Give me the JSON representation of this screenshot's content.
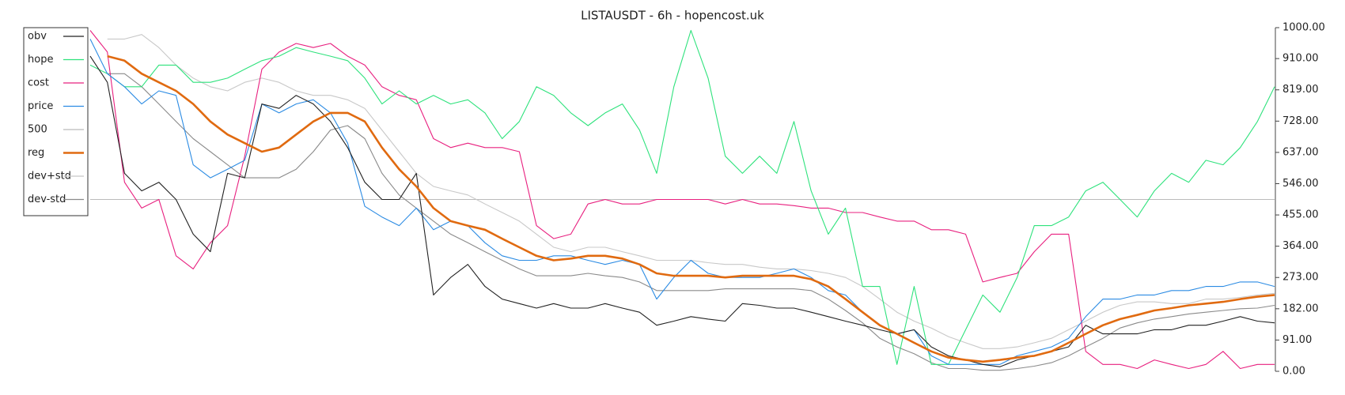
{
  "chart_data": {
    "type": "line",
    "title": "LISTAUSDT - 6h - hopencost.uk",
    "ylim": [
      0,
      1000
    ],
    "yticks": [
      {
        "value": 0,
        "label": "0.00"
      },
      {
        "value": 91,
        "label": "91.00"
      },
      {
        "value": 182,
        "label": "182.00"
      },
      {
        "value": 273,
        "label": "273.00"
      },
      {
        "value": 364,
        "label": "364.00"
      },
      {
        "value": 455,
        "label": "455.00"
      },
      {
        "value": 546,
        "label": "546.00"
      },
      {
        "value": 637,
        "label": "637.00"
      },
      {
        "value": 728,
        "label": "728.00"
      },
      {
        "value": 819,
        "label": "819.00"
      },
      {
        "value": 910,
        "label": "910.00"
      },
      {
        "value": 1000,
        "label": "1000.00"
      }
    ],
    "legend": "upper left",
    "series": [
      {
        "name": "obv",
        "color": "#222222",
        "values": [
          917,
          841,
          576,
          525,
          550,
          500,
          399,
          348,
          576,
          563,
          778,
          765,
          803,
          778,
          727,
          651,
          550,
          500,
          500,
          576,
          222,
          273,
          311,
          247,
          210,
          197,
          184,
          197,
          184,
          184,
          197,
          184,
          172,
          134,
          146,
          159,
          152,
          146,
          197,
          192,
          184,
          184,
          172,
          159,
          146,
          134,
          121,
          109,
          121,
          71,
          45,
          33,
          20,
          13,
          33,
          45,
          58,
          71,
          134,
          109,
          109,
          109,
          121,
          121,
          134,
          134,
          146,
          159,
          146,
          141
        ]
      },
      {
        "name": "hope",
        "color": "#2ee27c",
        "values": [
          891,
          866,
          828,
          828,
          891,
          891,
          841,
          841,
          853,
          879,
          904,
          917,
          942,
          929,
          917,
          904,
          853,
          778,
          816,
          778,
          803,
          778,
          790,
          752,
          677,
          727,
          828,
          803,
          752,
          715,
          752,
          778,
          702,
          576,
          828,
          992,
          853,
          626,
          576,
          626,
          576,
          727,
          525,
          399,
          475,
          247,
          247,
          20,
          247,
          20,
          20,
          121,
          222,
          172,
          273,
          424,
          424,
          449,
          525,
          550,
          500,
          449,
          525,
          576,
          550,
          614,
          601,
          651,
          727,
          828
        ]
      },
      {
        "name": "cost",
        "color": "#e8207f",
        "values": [
          992,
          929,
          550,
          475,
          500,
          336,
          298,
          374,
          424,
          626,
          879,
          929,
          954,
          942,
          954,
          917,
          891,
          828,
          803,
          790,
          677,
          651,
          664,
          651,
          651,
          639,
          424,
          386,
          399,
          487,
          500,
          487,
          487,
          500,
          500,
          500,
          500,
          487,
          500,
          487,
          487,
          482,
          475,
          475,
          462,
          462,
          449,
          437,
          437,
          412,
          412,
          399,
          260,
          273,
          285,
          348,
          399,
          399,
          58,
          20,
          20,
          8,
          33,
          20,
          8,
          20,
          58,
          8,
          20,
          20
        ]
      },
      {
        "name": "price",
        "color": "#2b8be3",
        "values": [
          967,
          866,
          828,
          778,
          816,
          803,
          601,
          563,
          588,
          614,
          778,
          752,
          778,
          790,
          752,
          664,
          480,
          449,
          424,
          475,
          412,
          437,
          424,
          374,
          336,
          323,
          323,
          336,
          336,
          323,
          311,
          323,
          311,
          210,
          273,
          323,
          285,
          273,
          273,
          273,
          285,
          298,
          273,
          235,
          222,
          172,
          134,
          109,
          121,
          45,
          20,
          20,
          20,
          20,
          45,
          58,
          71,
          96,
          159,
          210,
          210,
          222,
          222,
          235,
          235,
          247,
          247,
          260,
          260,
          247
        ]
      },
      {
        "name": "500",
        "color": "#bbbbbb",
        "values": [
          500,
          500,
          500,
          500,
          500,
          500,
          500,
          500,
          500,
          500,
          500,
          500,
          500,
          500,
          500,
          500,
          500,
          500,
          500,
          500,
          500,
          500,
          500,
          500,
          500,
          500,
          500,
          500,
          500,
          500,
          500,
          500,
          500,
          500,
          500,
          500,
          500,
          500,
          500,
          500,
          500,
          500,
          500,
          500,
          500,
          500,
          500,
          500,
          500,
          500,
          500,
          500,
          500,
          500,
          500,
          500,
          500,
          500,
          500,
          500,
          500,
          500,
          500,
          500,
          500,
          500,
          500,
          500,
          500,
          500
        ]
      },
      {
        "name": "reg",
        "color": "#e06a10",
        "values": [
          null,
          917,
          904,
          866,
          841,
          816,
          778,
          727,
          689,
          664,
          639,
          651,
          689,
          727,
          752,
          752,
          727,
          651,
          588,
          538,
          475,
          437,
          424,
          412,
          386,
          361,
          336,
          323,
          328,
          336,
          336,
          328,
          311,
          285,
          278,
          278,
          278,
          273,
          278,
          278,
          278,
          278,
          268,
          247,
          210,
          172,
          134,
          109,
          83,
          58,
          40,
          33,
          28,
          33,
          40,
          45,
          58,
          83,
          109,
          134,
          152,
          164,
          177,
          184,
          192,
          197,
          202,
          210,
          217,
          222
        ]
      },
      {
        "name": "dev+std",
        "color": "#c8c8c8",
        "values": [
          null,
          967,
          967,
          980,
          942,
          891,
          853,
          828,
          816,
          841,
          853,
          841,
          816,
          803,
          803,
          790,
          765,
          702,
          639,
          576,
          538,
          525,
          513,
          487,
          462,
          437,
          399,
          361,
          348,
          361,
          361,
          348,
          336,
          323,
          323,
          323,
          316,
          311,
          311,
          303,
          298,
          298,
          293,
          285,
          273,
          247,
          210,
          172,
          146,
          126,
          101,
          83,
          66,
          66,
          71,
          83,
          96,
          121,
          146,
          172,
          192,
          202,
          202,
          197,
          197,
          210,
          210,
          215,
          222,
          227
        ]
      },
      {
        "name": "dev-std",
        "color": "#8a8a8a",
        "values": [
          null,
          866,
          866,
          828,
          778,
          727,
          677,
          639,
          601,
          563,
          563,
          563,
          588,
          639,
          702,
          715,
          677,
          576,
          513,
          475,
          437,
          399,
          374,
          348,
          323,
          298,
          278,
          278,
          278,
          285,
          278,
          273,
          260,
          235,
          235,
          235,
          235,
          240,
          240,
          240,
          240,
          240,
          235,
          210,
          177,
          141,
          96,
          71,
          51,
          25,
          8,
          8,
          3,
          3,
          8,
          15,
          25,
          45,
          71,
          96,
          126,
          141,
          152,
          159,
          167,
          172,
          177,
          182,
          184,
          192
        ]
      }
    ]
  }
}
